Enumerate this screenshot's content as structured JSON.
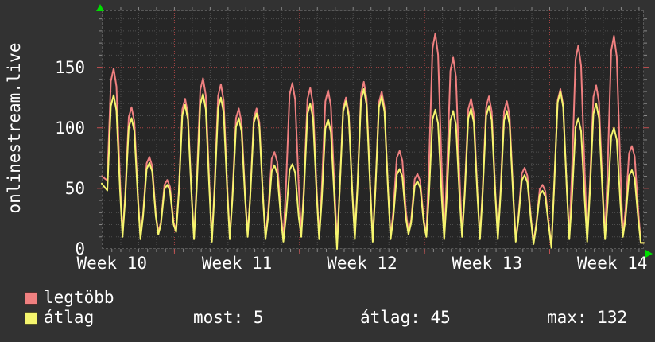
{
  "graph": {
    "vertical_title": "onlinestream.live",
    "accent_red": "#f08080",
    "accent_yellow": "#f5f56e",
    "plot_bg": "#262626",
    "outer_bg": "#323232",
    "grid_minor": "#4f4f4f",
    "grid_major_red": "#a84444",
    "arrow_green": "#00dd00"
  },
  "legend": {
    "items": [
      {
        "label": "legtöbb",
        "color": "#f08080"
      },
      {
        "label": "átlag",
        "color": "#f5f56e"
      }
    ]
  },
  "footer": {
    "most": "most: 5",
    "atlag": "átlag: 45",
    "max": "max: 132"
  },
  "chart_data": {
    "type": "line",
    "title": "onlinestream.live",
    "xlabel": "",
    "ylabel": "",
    "ylim": [
      0,
      197
    ],
    "yticks": [
      0,
      50,
      100,
      150
    ],
    "grid": true,
    "legend_position": "bottom-left",
    "week_labels": [
      "Week 10",
      "Week 11",
      "Week 12",
      "Week 13",
      "Week 14"
    ],
    "week_start_days": [
      -3,
      4,
      11,
      18,
      25
    ],
    "week_boundary_days": [
      4,
      11,
      18,
      25
    ],
    "days": 30,
    "stats": {
      "most": 5,
      "atlag": 45,
      "max": 132
    },
    "series": [
      {
        "name": "legtöbb",
        "color": "#f08080",
        "edge_start": 60,
        "peaks": [
          149,
          117,
          76,
          57,
          124,
          141,
          136,
          116,
          116,
          80,
          137,
          133,
          131,
          125,
          138,
          130,
          81,
          62,
          178,
          158,
          124,
          126,
          122,
          67,
          53,
          132,
          168,
          135,
          176,
          85
        ],
        "troughs": [
          12,
          10,
          14,
          16,
          10,
          8,
          10,
          12,
          10,
          8,
          12,
          10,
          6,
          10,
          8,
          10,
          14,
          12,
          10,
          12,
          10,
          10,
          8,
          6,
          2,
          10,
          8,
          10,
          12,
          5
        ]
      },
      {
        "name": "átlag",
        "color": "#f5f56e",
        "edge_start": 54,
        "peaks": [
          127,
          108,
          71,
          53,
          119,
          128,
          125,
          108,
          112,
          69,
          70,
          120,
          107,
          122,
          132,
          126,
          66,
          56,
          115,
          114,
          116,
          118,
          114,
          61,
          48,
          130,
          108,
          120,
          100,
          65
        ],
        "troughs": [
          10,
          8,
          12,
          14,
          8,
          6,
          8,
          10,
          8,
          6,
          10,
          8,
          0,
          8,
          6,
          8,
          12,
          10,
          8,
          10,
          8,
          8,
          6,
          4,
          1,
          8,
          6,
          8,
          10,
          5
        ]
      }
    ]
  }
}
